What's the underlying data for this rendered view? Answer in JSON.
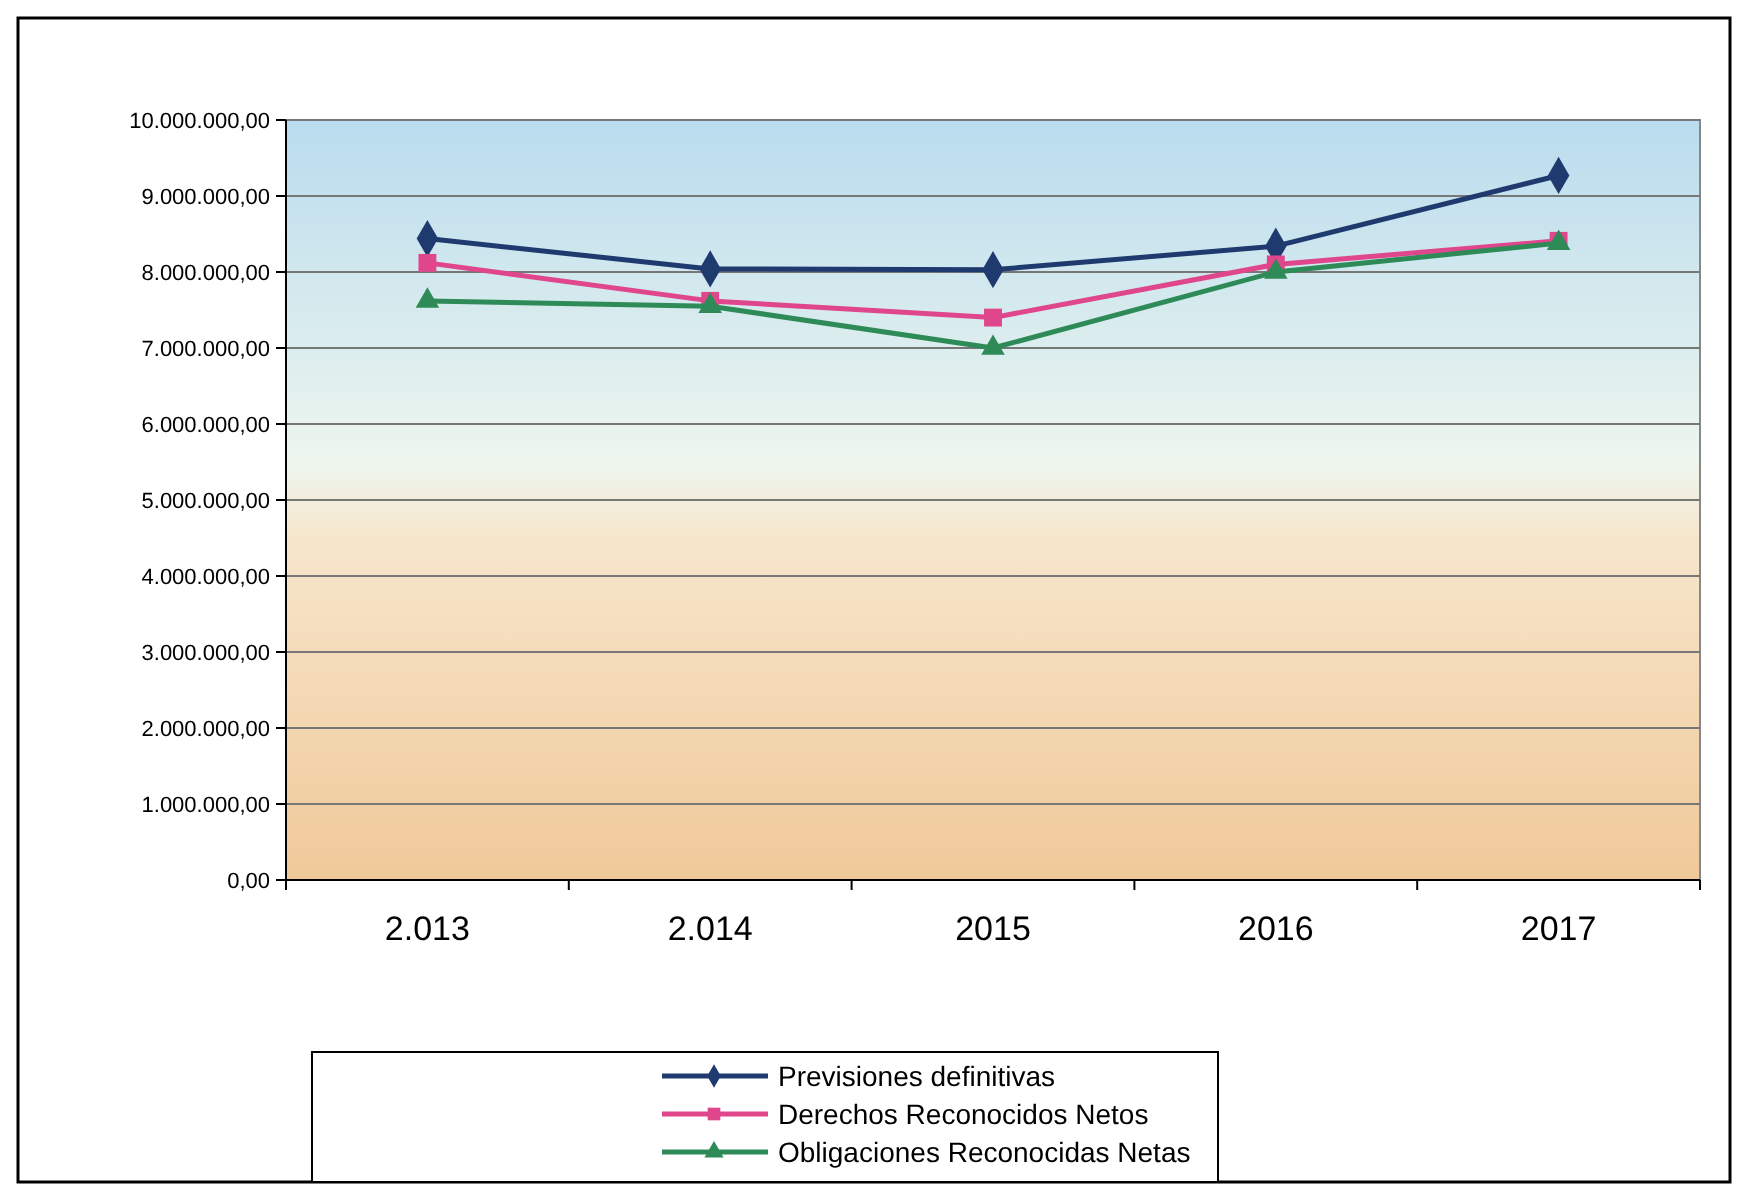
{
  "chart_data": {
    "type": "line",
    "categories": [
      "2.013",
      "2.014",
      "2015",
      "2016",
      "2017"
    ],
    "series": [
      {
        "name": "Previsiones definitivas",
        "color": "#1f3a6e",
        "marker": "diamond",
        "values": [
          8440000,
          8040000,
          8030000,
          8340000,
          9270000
        ]
      },
      {
        "name": "Derechos Reconocidos Netos",
        "color": "#e0468c",
        "marker": "square",
        "values": [
          8120000,
          7620000,
          7400000,
          8100000,
          8410000
        ]
      },
      {
        "name": "Obligaciones Reconocidas Netas",
        "color": "#2e8b57",
        "marker": "triangle",
        "values": [
          7620000,
          7550000,
          7000000,
          8000000,
          8380000
        ]
      }
    ],
    "ylim": [
      0,
      10000000
    ],
    "yticks": [
      {
        "value": 0,
        "label": "0,00"
      },
      {
        "value": 1000000,
        "label": "1.000.000,00"
      },
      {
        "value": 2000000,
        "label": "2.000.000,00"
      },
      {
        "value": 3000000,
        "label": "3.000.000,00"
      },
      {
        "value": 4000000,
        "label": "4.000.000,00"
      },
      {
        "value": 5000000,
        "label": "5.000.000,00"
      },
      {
        "value": 6000000,
        "label": "6.000.000,00"
      },
      {
        "value": 7000000,
        "label": "7.000.000,00"
      },
      {
        "value": 8000000,
        "label": "8.000.000,00"
      },
      {
        "value": 9000000,
        "label": "9.000.000,00"
      },
      {
        "value": 10000000,
        "label": "10.000.000,00"
      }
    ],
    "grid": "y",
    "legend": "bottom"
  }
}
